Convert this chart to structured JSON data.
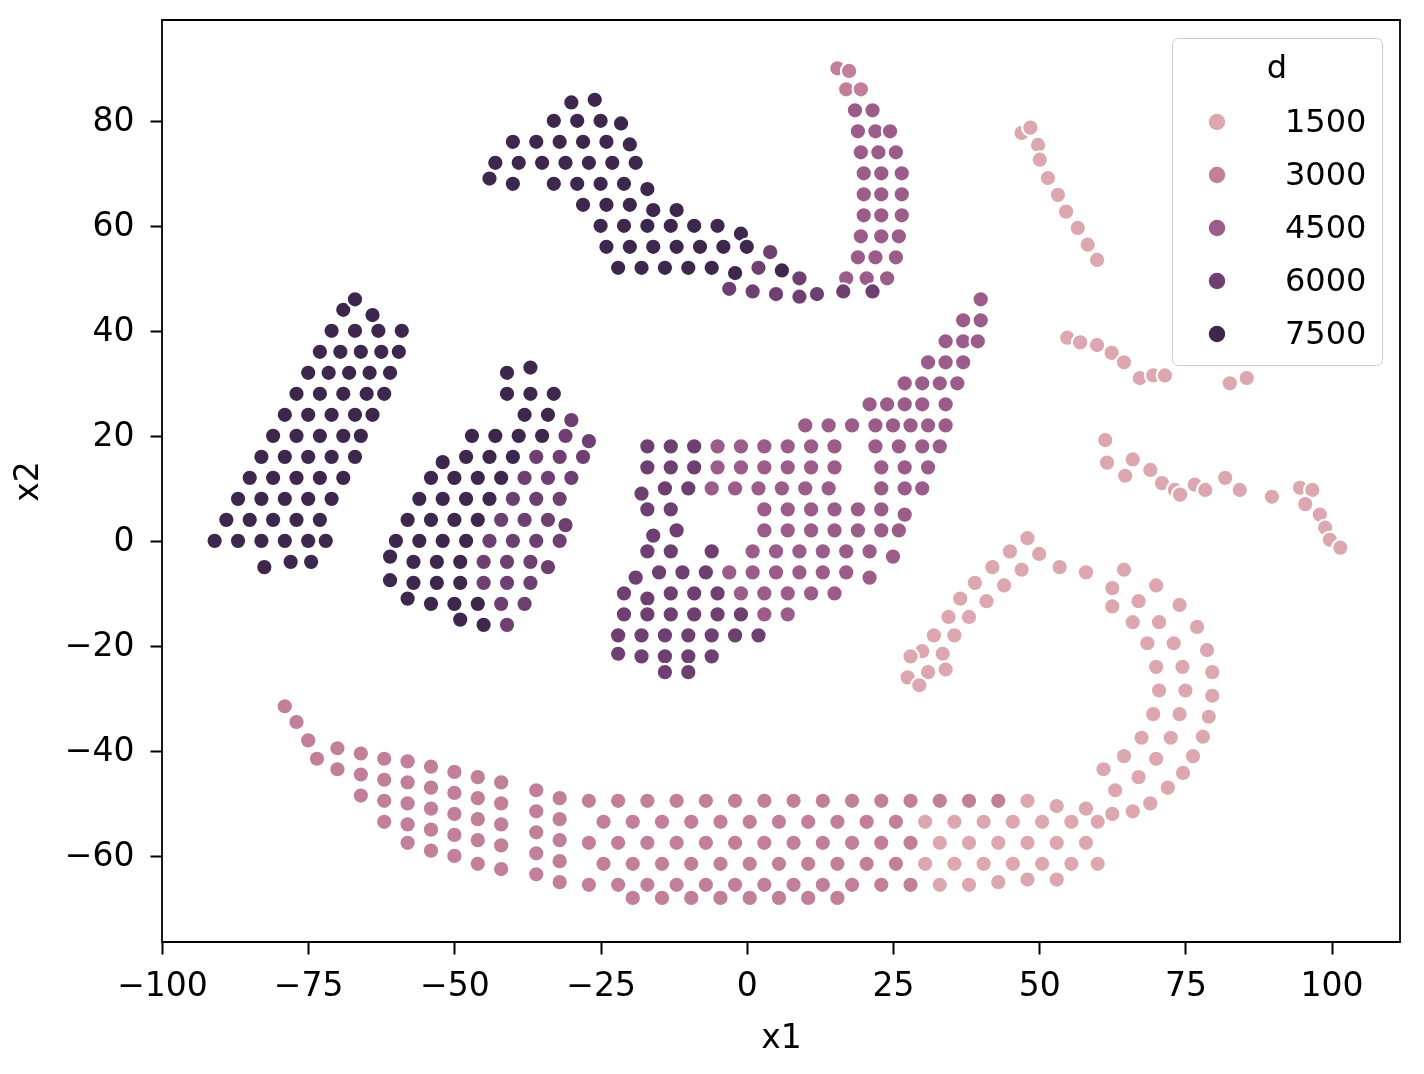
{
  "chart_data": {
    "type": "scatter",
    "xlabel": "x1",
    "ylabel": "x2",
    "legend_title": "d",
    "legend": "top right",
    "marker": "circle",
    "xlim": [
      -100,
      111.7
    ],
    "ylim": [
      -76.4,
      99.2
    ],
    "xticks": [
      -100,
      -75,
      -50,
      -25,
      0,
      25,
      50,
      75,
      100
    ],
    "yticks": [
      -60,
      -40,
      -20,
      0,
      20,
      40,
      60,
      80
    ],
    "series": [
      {
        "name": "1500",
        "color": "#dca7ae",
        "x": [
          48,
          53,
          58,
          30.5,
          35.5,
          40.5,
          45.5,
          50.5,
          55.5,
          60,
          33,
          38,
          43,
          48,
          53,
          58,
          30.5,
          35.5,
          40.5,
          45.5,
          50.5,
          55.5,
          60,
          33,
          38,
          43,
          48,
          53,
          62.5,
          66,
          69,
          72,
          74.6,
          76.3,
          78,
          79,
          79.6,
          79.6,
          78.7,
          77,
          74,
          70,
          64.5,
          63,
          67,
          70,
          72.5,
          74,
          75,
          74.5,
          73,
          70.5,
          67,
          62.5,
          58,
          53.5,
          61,
          64.5,
          67.5,
          69.5,
          70.5,
          70,
          68.5,
          66,
          62.5,
          48,
          50,
          45,
          47,
          42,
          44,
          39,
          41,
          36.5,
          38,
          34.5,
          35.5,
          32,
          30,
          33.5,
          28,
          27.5,
          31,
          29.5,
          34,
          47,
          48.5,
          49.8,
          50.1,
          51.5,
          53.2,
          54.6,
          56.6,
          58.3,
          59.9,
          54.8,
          57,
          59.9,
          62.4,
          64.5,
          67.2,
          69.5,
          71.5,
          61.3,
          61.6,
          64.7,
          66,
          69,
          71,
          73.2,
          74.1,
          76.6,
          78.4,
          81.8,
          84.3,
          89.8,
          94.6,
          96.7,
          95.5,
          98,
          98.9,
          99.7,
          101.5,
          85.5,
          82.6
        ],
        "values": [
          -49.5,
          -50.5,
          -51,
          -53.5,
          -53.5,
          -53.5,
          -53.5,
          -53.5,
          -53.5,
          -53.5,
          -57.5,
          -57.5,
          -57.5,
          -57.5,
          -57.5,
          -57.5,
          -61.5,
          -61.5,
          -61.5,
          -61.5,
          -61.5,
          -61.5,
          -61.5,
          -65.5,
          -65.5,
          -65,
          -64.5,
          -64.5,
          -52,
          -51.5,
          -50,
          -47,
          -44.2,
          -41,
          -37.3,
          -33.5,
          -29.5,
          -25,
          -20.8,
          -16.4,
          -12.2,
          -8.5,
          -5.5,
          -47.5,
          -45,
          -41.5,
          -37.5,
          -33,
          -28.5,
          -24,
          -19.5,
          -15.5,
          -11.5,
          -9,
          -6,
          -5,
          -43.5,
          -41,
          -37.5,
          -33,
          -28.5,
          -24,
          -19.5,
          -15.5,
          -12.5,
          0.5,
          -2.5,
          -2,
          -5.5,
          -5,
          -8.5,
          -8,
          -11.5,
          -11,
          -14.5,
          -14.5,
          -18,
          -18,
          -21,
          -21.5,
          -22,
          -26,
          -25,
          -27.5,
          -24.5,
          77.7,
          78.7,
          75.4,
          72.6,
          69.1,
          65.9,
          62.7,
          59.6,
          56.4,
          53.5,
          38.7,
          37.8,
          37.3,
          35.8,
          34,
          31,
          31.5,
          31.5,
          19.2,
          14.9,
          12.4,
          15.5,
          13.5,
          11,
          9.7,
          8.8,
          10.7,
          9.7,
          12,
          9.7,
          8.4,
          10.1,
          9.7,
          7,
          5,
          2.5,
          0.2,
          -1.3,
          31,
          30
        ]
      },
      {
        "name": "3000",
        "color": "#c17f9a",
        "x": [
          15.5,
          17.5,
          17,
          19.5,
          -79,
          -77,
          -75,
          -73.5,
          -70,
          -70,
          -66,
          -66,
          -66,
          -62,
          -62,
          -62,
          -62,
          -58,
          -58,
          -58,
          -58,
          -58,
          -54,
          -54,
          -54,
          -54,
          -54,
          -50,
          -50,
          -50,
          -50,
          -50,
          -46,
          -46,
          -46,
          -46,
          -46,
          -42,
          -42,
          -42,
          -42,
          -42,
          -36,
          -36,
          -36,
          -36,
          -36,
          -32,
          -32,
          -32,
          -32,
          -32,
          -27,
          -22,
          -17,
          -12,
          -7,
          -2,
          3,
          8,
          13,
          18,
          23,
          28,
          33,
          38,
          43,
          -24.5,
          -19.5,
          -14.5,
          -9.5,
          -4.5,
          0.5,
          5.5,
          10.5,
          15.5,
          20.5,
          25.5,
          -27,
          -22,
          -17,
          -12,
          -7,
          -2,
          3,
          8,
          13,
          18,
          23,
          28,
          -24.5,
          -19.5,
          -14.5,
          -9.5,
          -4.5,
          0.5,
          5.5,
          10.5,
          15.5,
          20.5,
          25.5,
          -27,
          -22,
          -17,
          -12,
          -7,
          -2,
          3,
          8,
          13,
          18,
          23,
          28,
          -19.5,
          -14.5,
          -9.5,
          -4.5,
          0.5,
          5.5,
          10.5,
          15.5
        ],
        "values": [
          90,
          89.5,
          86,
          86,
          -31.5,
          -34.5,
          -38,
          -41.5,
          -39.5,
          -43.5,
          -40.5,
          -44.5,
          -48.5,
          -41.5,
          -45.5,
          -49.5,
          -53.5,
          -42,
          -46,
          -50,
          -54,
          -57.5,
          -43,
          -47,
          -51,
          -55,
          -59,
          -44,
          -48,
          -52,
          -56,
          -60,
          -45,
          -49,
          -53,
          -57,
          -61.5,
          -46,
          -50,
          -54,
          -58,
          -62.5,
          -47.5,
          -51.5,
          -55.5,
          -59.5,
          -63.5,
          -49,
          -53,
          -57,
          -61,
          -65,
          -49.5,
          -49.5,
          -49.5,
          -49.5,
          -49.5,
          -49.5,
          -49.5,
          -49.5,
          -49.5,
          -49.5,
          -49.5,
          -49.5,
          -49.5,
          -49.5,
          -49.5,
          -53.5,
          -53.5,
          -53.5,
          -53.5,
          -53.5,
          -53.5,
          -53.5,
          -53.5,
          -53.5,
          -53.5,
          -53.5,
          -57.5,
          -57.5,
          -57.5,
          -57.5,
          -57.5,
          -57.5,
          -57.5,
          -57.5,
          -57.5,
          -57.5,
          -57.5,
          -57.5,
          -61.5,
          -61.5,
          -61.5,
          -61.5,
          -61.5,
          -61.5,
          -61.5,
          -61.5,
          -61.5,
          -61.5,
          -61.5,
          -65.5,
          -65.5,
          -65.5,
          -65.5,
          -65.5,
          -65.5,
          -65.5,
          -65.5,
          -65.5,
          -65.5,
          -65.5,
          -65.5,
          -68,
          -68,
          -68,
          -68,
          -68,
          -68,
          -68,
          -68
        ]
      },
      {
        "name": "4500",
        "color": "#9c5c89",
        "x": [
          40,
          37,
          40,
          34,
          37,
          39.5,
          31,
          34,
          37,
          27,
          30,
          33,
          36,
          21,
          24,
          27,
          30,
          34,
          10,
          14,
          18,
          22,
          25,
          28,
          31,
          34,
          -5,
          -1,
          3,
          7,
          11,
          15,
          22,
          26,
          30,
          33,
          -5,
          -1,
          3,
          7,
          11,
          15,
          23,
          27,
          31,
          -6,
          -2,
          2,
          6,
          10,
          14,
          23,
          27,
          30,
          3,
          7,
          11,
          15,
          19,
          23,
          27,
          3,
          7,
          11,
          15,
          19,
          23,
          26,
          1,
          5,
          9,
          13,
          17,
          21,
          25,
          -3,
          1,
          5,
          9,
          13,
          17,
          21,
          -1,
          3,
          7,
          11,
          15,
          3,
          7,
          18.5,
          21.5,
          19,
          22,
          24.5,
          19.5,
          22.5,
          25.5,
          20,
          23,
          26.5,
          20,
          23,
          26.5,
          20,
          23,
          26.5,
          19.5,
          23,
          26,
          19,
          22,
          25.5,
          17,
          20.5,
          24
        ],
        "values": [
          46,
          42,
          42,
          38,
          38,
          38,
          34,
          34,
          34,
          30,
          30,
          30,
          30,
          26,
          26,
          26,
          26,
          26,
          22,
          22,
          22,
          22,
          22,
          22,
          22,
          22,
          18,
          18,
          18,
          18,
          18,
          18,
          18,
          18,
          18,
          18,
          14,
          14,
          14,
          14,
          14,
          14,
          14,
          14,
          14,
          10,
          10,
          10,
          10,
          10,
          10,
          10,
          10,
          10,
          6,
          6,
          6,
          6,
          6,
          6,
          5,
          2,
          2,
          2,
          2,
          2,
          2,
          2,
          -2,
          -2,
          -2,
          -2,
          -2,
          -2,
          -3,
          -6,
          -6,
          -6,
          -6,
          -6,
          -6,
          -7,
          -10,
          -10,
          -10,
          -10,
          -10,
          -14,
          -14,
          82,
          82,
          78,
          78,
          78,
          74,
          74,
          74,
          70,
          70,
          70,
          66,
          66,
          66,
          62,
          62,
          62,
          58,
          58,
          58,
          54,
          54,
          54,
          50,
          50,
          50
        ]
      },
      {
        "name": "6000",
        "color": "#6e4071",
        "x": [
          -30,
          -31,
          -27,
          -36,
          -32,
          -28,
          -38,
          -34,
          -30,
          -40,
          -36,
          -32,
          -42,
          -38,
          -34,
          -31,
          -44,
          -40,
          -36,
          -32,
          -45,
          -41,
          -37,
          -34,
          -45,
          -41,
          -37,
          -42,
          -38,
          -41,
          4,
          2,
          9,
          -3,
          1,
          5,
          9,
          12,
          -17,
          -13,
          -9,
          -17,
          -13,
          -9,
          -18,
          -14,
          -10,
          -17,
          -13,
          -16,
          -12,
          -17,
          -13,
          -6,
          -19,
          -15,
          -11,
          -7,
          -21,
          -17,
          -13,
          -9,
          -5,
          -21,
          -17,
          -13,
          -9,
          -5,
          -1,
          -22,
          -18,
          -14,
          -10,
          -6,
          -2,
          2,
          -22,
          -18,
          -14,
          -10,
          -6,
          -14,
          -10,
          16.5,
          21.5
        ],
        "values": [
          23,
          20,
          19,
          16,
          16,
          16,
          12,
          12,
          12,
          8,
          8,
          8,
          4,
          4,
          4,
          3,
          0,
          0,
          0,
          0,
          -4,
          -4,
          -4,
          -5,
          -8,
          -8,
          -8,
          -12,
          -12,
          -16,
          55,
          52,
          50,
          48,
          47.5,
          47,
          46.5,
          47,
          18,
          18,
          18,
          14,
          14,
          14,
          9,
          10,
          10,
          6,
          6,
          1,
          2,
          -2,
          -2,
          -2,
          -7,
          -6,
          -6,
          -6,
          -10,
          -11,
          -10,
          -10,
          -10,
          -14,
          -14,
          -14,
          -14,
          -14,
          -14,
          -18,
          -18,
          -18,
          -18,
          -18,
          -18,
          -18,
          -21.5,
          -22,
          -22,
          -22,
          -22,
          -25,
          -25,
          47.5,
          47.5
        ]
      },
      {
        "name": "7500",
        "color": "#3d274d",
        "x": [
          -82.5,
          -78,
          -74.5,
          -91,
          -87,
          -83,
          -79,
          -75,
          -72,
          -89,
          -85,
          -81,
          -77,
          -73,
          -87,
          -83,
          -79,
          -75,
          -71,
          -85,
          -81,
          -77,
          -73,
          -69,
          -83,
          -79,
          -75,
          -71,
          -67,
          -81,
          -77,
          -73,
          -69,
          -66,
          -79,
          -75,
          -71,
          -67,
          -64,
          -77,
          -73,
          -69,
          -65,
          -62,
          -75,
          -71.5,
          -68,
          -64.5,
          -61,
          -73,
          -69.5,
          -66,
          -62.5,
          -59.5,
          -71,
          -67,
          -63,
          -59,
          -69,
          -64,
          -67,
          -41,
          -37,
          -41,
          -37,
          -33,
          -38,
          -34,
          -47,
          -43,
          -39,
          -35,
          -52,
          -48,
          -44,
          -40,
          -54,
          -50,
          -46,
          -42,
          -56,
          -52,
          -48,
          -44,
          -58,
          -54,
          -50,
          -46,
          -60,
          -56,
          -52,
          -48,
          -61,
          -57,
          -53,
          -49,
          -61,
          -57,
          -53,
          -49,
          -58,
          -54,
          -50,
          -46,
          -49,
          -45,
          -30,
          -26,
          -33,
          -29,
          -25,
          -21.5,
          -40,
          -36,
          -32,
          -28,
          -24,
          -20,
          -43,
          -39,
          -35,
          -31,
          -27,
          -23,
          -19,
          -44,
          -40,
          -33,
          -29,
          -25,
          -21,
          -17,
          -28,
          -24,
          -20,
          -16,
          -12,
          -25,
          -21,
          -17,
          -13,
          -9,
          -5,
          -1,
          -24,
          -20,
          -16,
          -12,
          -8,
          -4,
          0,
          -22,
          -18,
          -14,
          -10,
          -6,
          -2,
          6
        ],
        "values": [
          -5,
          -4,
          -4,
          0,
          0,
          0,
          0,
          0,
          0,
          4,
          4,
          4,
          4,
          4,
          8,
          8,
          8,
          8,
          8,
          12,
          12,
          12,
          12,
          12,
          16,
          16,
          16,
          16,
          16,
          20,
          20,
          20,
          20,
          20,
          24,
          24,
          24,
          24,
          24,
          28,
          28,
          28,
          28,
          28,
          32,
          32,
          32,
          32,
          32,
          36,
          36,
          36,
          36,
          36,
          40,
          40,
          40,
          40,
          44,
          43,
          46,
          32,
          33,
          28,
          28,
          28,
          24,
          24,
          20,
          20,
          20,
          20,
          15,
          16,
          16,
          16,
          12,
          12,
          12,
          12,
          8,
          8,
          8,
          8,
          4,
          4,
          4,
          4,
          0,
          0,
          0,
          0,
          -3,
          -4,
          -4,
          -4,
          -7.5,
          -8,
          -8,
          -8,
          -11,
          -12,
          -12,
          -12,
          -15,
          -16,
          83.5,
          84,
          80,
          80,
          80,
          79.5,
          76,
          76,
          76,
          76,
          76,
          75.5,
          72,
          72,
          72,
          72,
          72,
          72,
          72,
          69,
          68,
          68,
          68,
          68,
          68,
          67,
          64,
          64,
          64,
          63,
          63,
          60,
          60,
          60,
          60,
          60,
          60,
          58.5,
          56,
          56,
          56,
          56,
          56,
          56,
          56,
          52,
          52,
          52,
          52,
          52,
          51,
          51.5
        ]
      }
    ]
  }
}
